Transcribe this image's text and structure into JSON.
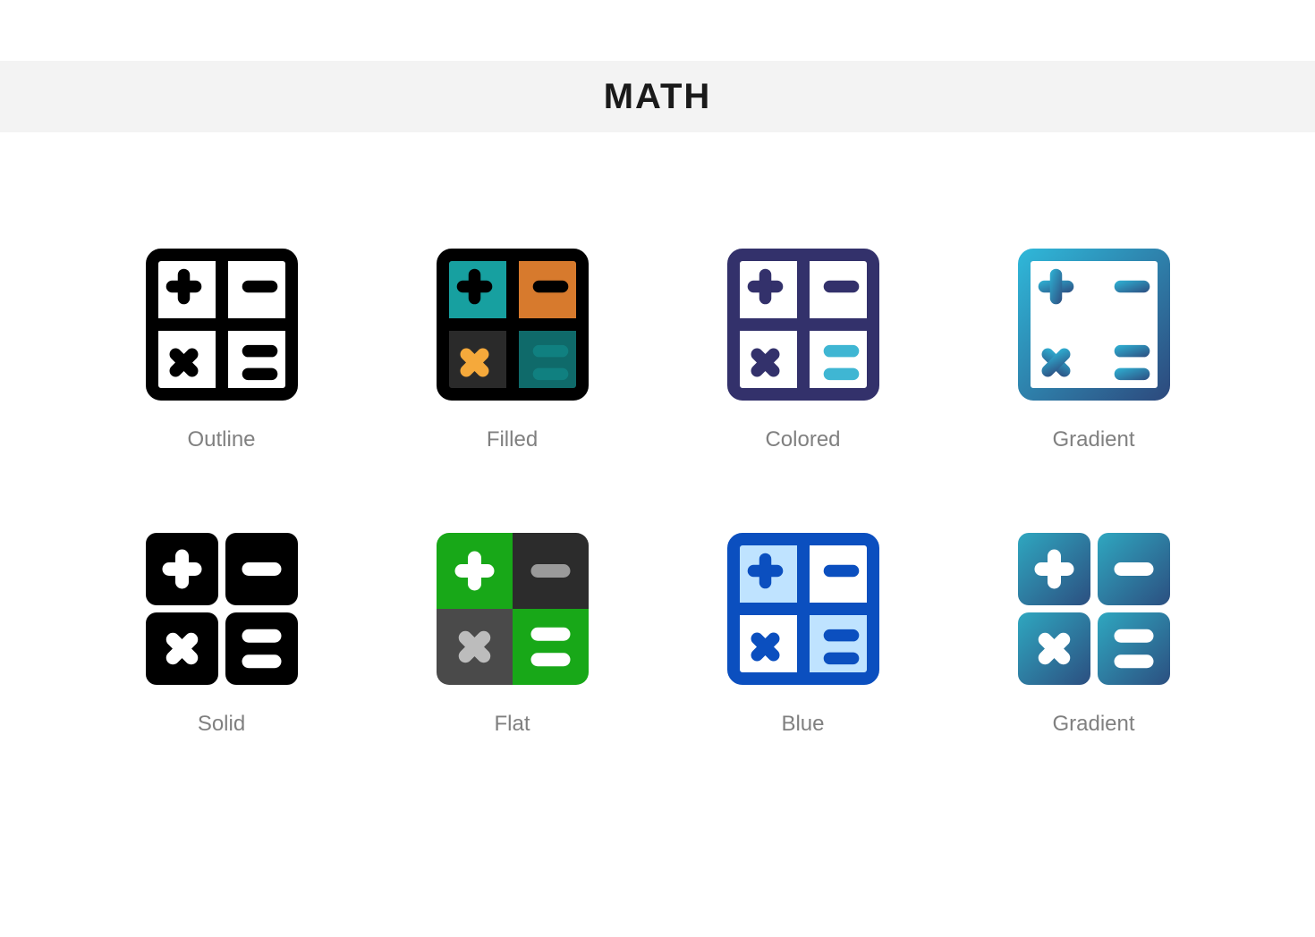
{
  "title": "MATH",
  "label_color": "#808080",
  "label_fontsize": 24,
  "title_fontsize": 40,
  "header_bg": "#f3f3f3",
  "icons": [
    {
      "id": "outline",
      "label": "Outline",
      "style": "outline",
      "frame_stroke": "#000000",
      "frame_fill": "none",
      "symbol_color": "#000000",
      "cell_fills": [
        "none",
        "none",
        "none",
        "none"
      ]
    },
    {
      "id": "filled",
      "label": "Filled",
      "style": "filled",
      "frame_stroke": "#000000",
      "frame_fill": "none",
      "symbol_colors": [
        "#000000",
        "#000000",
        "#f5a93b",
        "#108080"
      ],
      "cell_fills": [
        "#17a0a0",
        "#d77a2d",
        "#2a2a2a",
        "#0f6a6a"
      ]
    },
    {
      "id": "colored",
      "label": "Colored",
      "style": "outline",
      "frame_stroke": "#33316b",
      "frame_fill": "#ffffff",
      "symbol_colors": [
        "#33316b",
        "#33316b",
        "#33316b",
        "#3fb6d3"
      ],
      "cell_fills": [
        "#ffffff",
        "#ffffff",
        "#ffffff",
        "#ffffff"
      ]
    },
    {
      "id": "gradient1",
      "label": "Gradient",
      "style": "gradient-outline",
      "gradient_from": "#2fb4d6",
      "gradient_to": "#2d4d80",
      "frame_fill": "#ffffff"
    },
    {
      "id": "solid",
      "label": "Solid",
      "style": "solid",
      "cell_fill": "#000000",
      "symbol_color": "#ffffff"
    },
    {
      "id": "flat",
      "label": "Flat",
      "style": "solid-multi",
      "cell_fills": [
        "#18a818",
        "#2c2c2c",
        "#4a4a4a",
        "#18a818"
      ],
      "symbol_colors": [
        "#ffffff",
        "#9a9a9a",
        "#bcbcbc",
        "#ffffff"
      ]
    },
    {
      "id": "blue",
      "label": "Blue",
      "style": "outline",
      "frame_stroke": "#0b4fbf",
      "frame_fill": "#ffffff",
      "symbol_colors": [
        "#0b4fbf",
        "#0b4fbf",
        "#0b4fbf",
        "#0b4fbf"
      ],
      "cell_fills": [
        "#bfe3ff",
        "#ffffff",
        "#ffffff",
        "#bfe3ff"
      ]
    },
    {
      "id": "gradient2",
      "label": "Gradient",
      "style": "gradient-solid",
      "gradient_from": "#2fa7c0",
      "gradient_to": "#2c4f80",
      "symbol_color": "#ffffff"
    }
  ]
}
